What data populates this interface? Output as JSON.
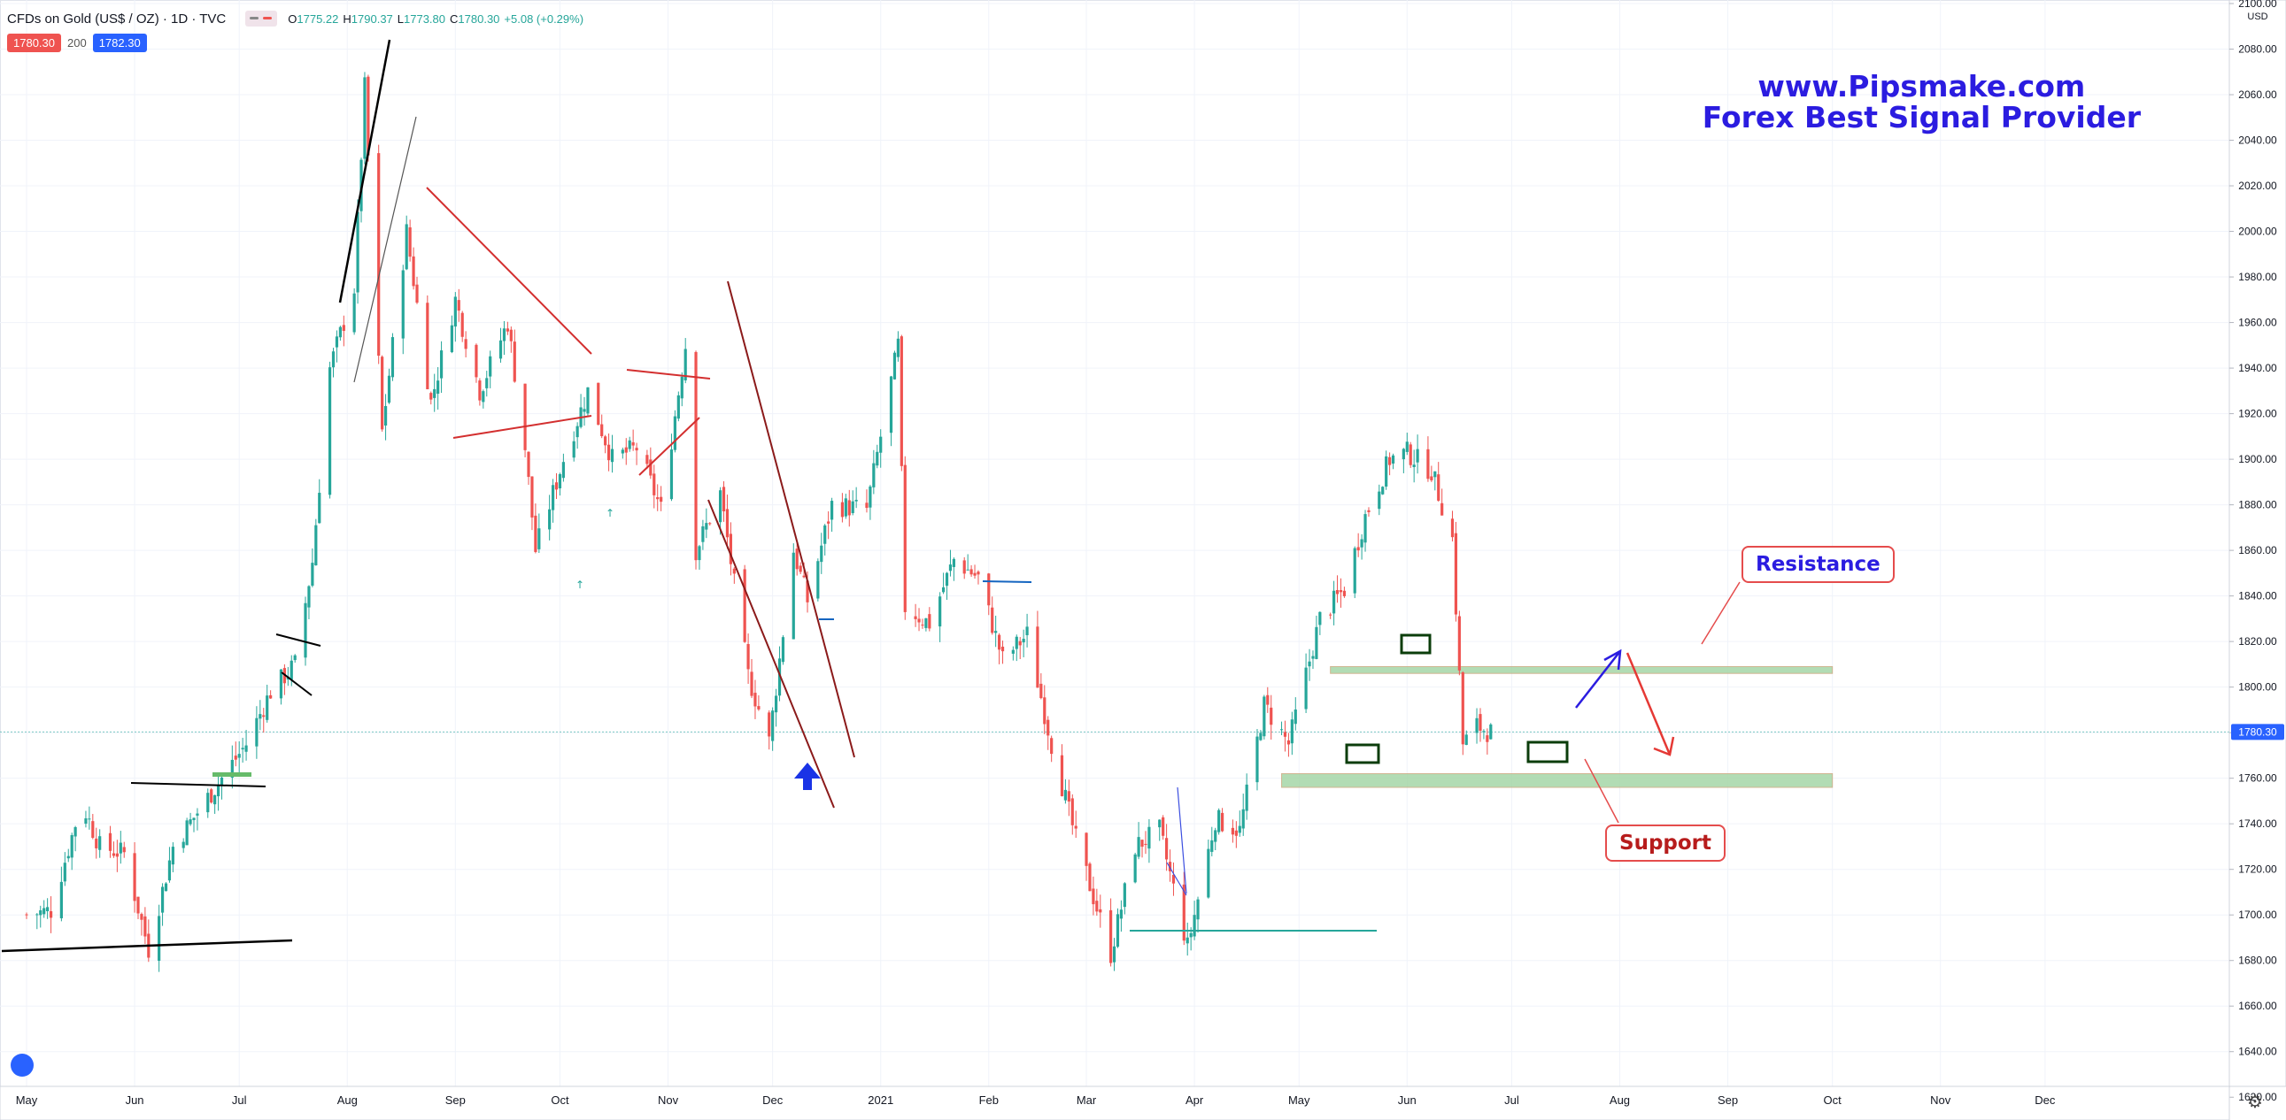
{
  "header": {
    "symbol_title": "CFDs on Gold (US$ / OZ) · 1D · TVC",
    "ohlc": [
      {
        "key": "O",
        "value": "1775.22"
      },
      {
        "key": "H",
        "value": "1790.37"
      },
      {
        "key": "L",
        "value": "1773.80"
      },
      {
        "key": "C",
        "value": "1780.30"
      },
      {
        "key": "",
        "value": "+5.08 (+0.29%)"
      }
    ],
    "bid": "1780.30",
    "spread": "200",
    "ask": "1782.30"
  },
  "watermark": {
    "line1": "www.Pipsmake.com",
    "line2": "Forex Best Signal Provider"
  },
  "annotations": {
    "resistance_label": "Resistance",
    "support_label": "Support"
  },
  "colors": {
    "up": "#26a69a",
    "down": "#ef5350",
    "brand": "#2b1ce0",
    "price_tag": "#2962ff",
    "bid_badge": "#ef5350"
  },
  "chart_data": {
    "type": "candlestick",
    "title": "CFDs on Gold (US$ / OZ) · 1D · TVC",
    "currency": "USD",
    "current_price": 1780.3,
    "ylim": [
      1610,
      2100
    ],
    "yticks": [
      1620,
      1640,
      1660,
      1680,
      1700,
      1720,
      1740,
      1760,
      1780,
      1800,
      1820,
      1840,
      1860,
      1880,
      1900,
      1920,
      1940,
      1960,
      1980,
      2000,
      2020,
      2040,
      2060,
      2080,
      2100
    ],
    "x_start": "2020-05-01",
    "x_end": "2021-12-31",
    "x_tick_labels": [
      {
        "date": "2020-05-01",
        "label": "May"
      },
      {
        "date": "2020-06-01",
        "label": "Jun"
      },
      {
        "date": "2020-07-01",
        "label": "Jul"
      },
      {
        "date": "2020-08-01",
        "label": "Aug"
      },
      {
        "date": "2020-09-01",
        "label": "Sep"
      },
      {
        "date": "2020-10-01",
        "label": "Oct"
      },
      {
        "date": "2020-11-01",
        "label": "Nov"
      },
      {
        "date": "2020-12-01",
        "label": "Dec"
      },
      {
        "date": "2021-01-01",
        "label": "2021"
      },
      {
        "date": "2021-02-01",
        "label": "Feb"
      },
      {
        "date": "2021-03-01",
        "label": "Mar"
      },
      {
        "date": "2021-04-01",
        "label": "Apr"
      },
      {
        "date": "2021-05-01",
        "label": "May"
      },
      {
        "date": "2021-06-01",
        "label": "Jun"
      },
      {
        "date": "2021-07-01",
        "label": "Jul"
      },
      {
        "date": "2021-08-01",
        "label": "Aug"
      },
      {
        "date": "2021-09-01",
        "label": "Sep"
      },
      {
        "date": "2021-10-01",
        "label": "Oct"
      },
      {
        "date": "2021-11-01",
        "label": "Nov"
      },
      {
        "date": "2021-12-01",
        "label": "Dec"
      }
    ],
    "close_path": [
      [
        "2020-05-01",
        1700
      ],
      [
        "2020-05-08",
        1702
      ],
      [
        "2020-05-15",
        1740
      ],
      [
        "2020-05-18",
        1745
      ],
      [
        "2020-05-22",
        1730
      ],
      [
        "2020-05-29",
        1727
      ],
      [
        "2020-06-05",
        1685
      ],
      [
        "2020-06-12",
        1730
      ],
      [
        "2020-06-19",
        1745
      ],
      [
        "2020-06-26",
        1760
      ],
      [
        "2020-07-03",
        1775
      ],
      [
        "2020-07-10",
        1798
      ],
      [
        "2020-07-17",
        1810
      ],
      [
        "2020-07-22",
        1855
      ],
      [
        "2020-07-27",
        1940
      ],
      [
        "2020-08-03",
        1975
      ],
      [
        "2020-08-06",
        2063
      ],
      [
        "2020-08-11",
        1912
      ],
      [
        "2020-08-18",
        2000
      ],
      [
        "2020-08-25",
        1925
      ],
      [
        "2020-09-01",
        1970
      ],
      [
        "2020-09-08",
        1930
      ],
      [
        "2020-09-16",
        1960
      ],
      [
        "2020-09-21",
        1905
      ],
      [
        "2020-09-24",
        1860
      ],
      [
        "2020-10-02",
        1900
      ],
      [
        "2020-10-09",
        1930
      ],
      [
        "2020-10-16",
        1900
      ],
      [
        "2020-10-23",
        1905
      ],
      [
        "2020-10-30",
        1878
      ],
      [
        "2020-11-06",
        1950
      ],
      [
        "2020-11-09",
        1860
      ],
      [
        "2020-11-16",
        1885
      ],
      [
        "2020-11-24",
        1805
      ],
      [
        "2020-11-30",
        1776
      ],
      [
        "2020-12-07",
        1860
      ],
      [
        "2020-12-11",
        1838
      ],
      [
        "2020-12-18",
        1880
      ],
      [
        "2020-12-28",
        1878
      ],
      [
        "2021-01-06",
        1950
      ],
      [
        "2021-01-08",
        1835
      ],
      [
        "2021-01-15",
        1828
      ],
      [
        "2021-01-22",
        1856
      ],
      [
        "2021-01-29",
        1848
      ],
      [
        "2021-02-05",
        1812
      ],
      [
        "2021-02-12",
        1823
      ],
      [
        "2021-02-19",
        1775
      ],
      [
        "2021-02-26",
        1733
      ],
      [
        "2021-03-08",
        1683
      ],
      [
        "2021-03-15",
        1730
      ],
      [
        "2021-03-22",
        1737
      ],
      [
        "2021-03-30",
        1686
      ],
      [
        "2021-04-07",
        1742
      ],
      [
        "2021-04-14",
        1737
      ],
      [
        "2021-04-21",
        1792
      ],
      [
        "2021-04-28",
        1775
      ],
      [
        "2021-05-07",
        1830
      ],
      [
        "2021-05-14",
        1843
      ],
      [
        "2021-05-20",
        1875
      ],
      [
        "2021-05-27",
        1900
      ],
      [
        "2021-06-01",
        1903
      ],
      [
        "2021-06-08",
        1895
      ],
      [
        "2021-06-14",
        1865
      ],
      [
        "2021-06-17",
        1775
      ],
      [
        "2021-06-21",
        1783
      ],
      [
        "2021-06-25",
        1780
      ]
    ],
    "price_zones": [
      {
        "name": "resistance",
        "price_from": 1806,
        "price_to": 1809,
        "date_from": "2021-05-10",
        "date_to": "2021-10-01"
      },
      {
        "name": "support",
        "price_from": 1756,
        "price_to": 1762,
        "date_from": "2021-04-26",
        "date_to": "2021-10-01"
      }
    ]
  }
}
